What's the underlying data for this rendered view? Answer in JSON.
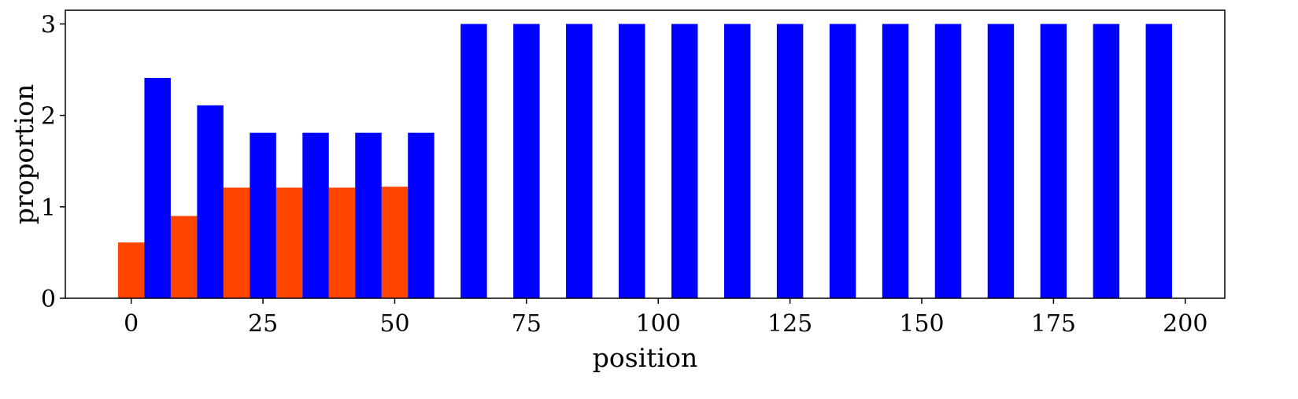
{
  "chart_data": {
    "type": "bar",
    "title": "",
    "xlabel": "position",
    "ylabel": "proportion",
    "xlim": [
      -12.5,
      207.5
    ],
    "ylim": [
      0,
      3.15
    ],
    "x_ticks": [
      0,
      25,
      50,
      75,
      100,
      125,
      150,
      175,
      200
    ],
    "y_ticks": [
      0,
      1,
      2,
      3
    ],
    "grid": false,
    "bar_width": 5,
    "series": [
      {
        "color": "#ff4500",
        "points": [
          {
            "x": 0,
            "y": 0.61
          },
          {
            "x": 10,
            "y": 0.9
          },
          {
            "x": 20,
            "y": 1.21
          },
          {
            "x": 30,
            "y": 1.21
          },
          {
            "x": 40,
            "y": 1.21
          },
          {
            "x": 50,
            "y": 1.22
          }
        ]
      },
      {
        "color": "#0000ff",
        "points": [
          {
            "x": 5,
            "y": 2.41
          },
          {
            "x": 15,
            "y": 2.11
          },
          {
            "x": 25,
            "y": 1.81
          },
          {
            "x": 35,
            "y": 1.81
          },
          {
            "x": 45,
            "y": 1.81
          },
          {
            "x": 55,
            "y": 1.81
          },
          {
            "x": 65,
            "y": 3.0
          },
          {
            "x": 75,
            "y": 3.0
          },
          {
            "x": 85,
            "y": 3.0
          },
          {
            "x": 95,
            "y": 3.0
          },
          {
            "x": 105,
            "y": 3.0
          },
          {
            "x": 115,
            "y": 3.0
          },
          {
            "x": 125,
            "y": 3.0
          },
          {
            "x": 135,
            "y": 3.0
          },
          {
            "x": 145,
            "y": 3.0
          },
          {
            "x": 155,
            "y": 3.0
          },
          {
            "x": 165,
            "y": 3.0
          },
          {
            "x": 175,
            "y": 3.0
          },
          {
            "x": 185,
            "y": 3.0
          },
          {
            "x": 195,
            "y": 3.0
          }
        ]
      }
    ]
  }
}
